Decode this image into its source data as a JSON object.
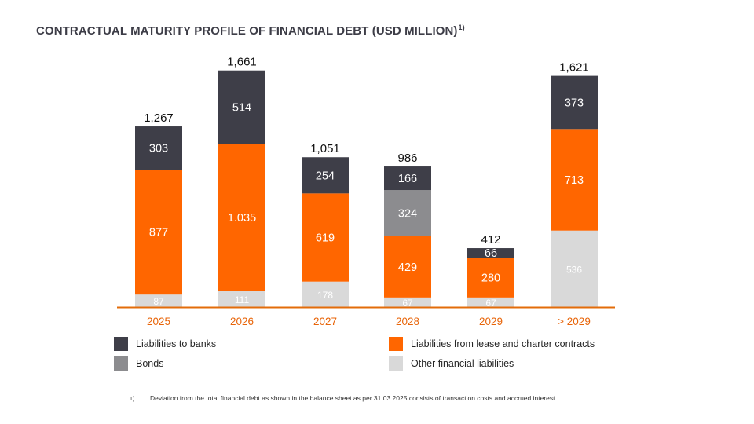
{
  "title": "CONTRACTUAL MATURITY PROFILE OF FINANCIAL DEBT (USD MILLION)",
  "title_footnote_mark": "1)",
  "chart_data": {
    "type": "bar",
    "stacked": true,
    "categories": [
      "2025",
      "2026",
      "2027",
      "2028",
      "2029",
      "> 2029"
    ],
    "totals": [
      "1,267",
      "1,661",
      "1,051",
      "986",
      "412",
      "1,621"
    ],
    "series": [
      {
        "name": "Other financial liabilities",
        "color": "#d9d9d9",
        "values": [
          87,
          111,
          178,
          67,
          67,
          536
        ],
        "labels": [
          "87",
          "111",
          "178",
          "67",
          "67",
          "536"
        ]
      },
      {
        "name": "Liabilities from lease and charter contracts",
        "color": "#ff6600",
        "values": [
          877,
          1035,
          619,
          429,
          280,
          713
        ],
        "labels": [
          "877",
          "1.035",
          "619",
          "429",
          "280",
          "713"
        ]
      },
      {
        "name": "Bonds",
        "color": "#8c8c8f",
        "values": [
          0,
          0,
          0,
          324,
          0,
          0
        ],
        "labels": [
          "",
          "",
          "",
          "324",
          "",
          ""
        ]
      },
      {
        "name": "Liabilities to banks",
        "color": "#3e3e48",
        "values": [
          303,
          514,
          254,
          166,
          66,
          373
        ],
        "labels": [
          "303",
          "514",
          "254",
          "166",
          "66",
          "373"
        ]
      }
    ],
    "axis_color": "#e36c0a",
    "category_label_color": "#e8650a"
  },
  "legend": [
    {
      "label": "Liabilities to banks",
      "color": "#3e3e48"
    },
    {
      "label": "Liabilities from lease and charter contracts",
      "color": "#ff6600"
    },
    {
      "label": "Bonds",
      "color": "#8c8c8f"
    },
    {
      "label": "Other financial liabilities",
      "color": "#d9d9d9"
    }
  ],
  "footnote": {
    "mark": "1)",
    "text": "Deviation from the total financial debt as shown in the balance sheet as per 31.03.2025 consists of transaction costs and accrued interest."
  }
}
